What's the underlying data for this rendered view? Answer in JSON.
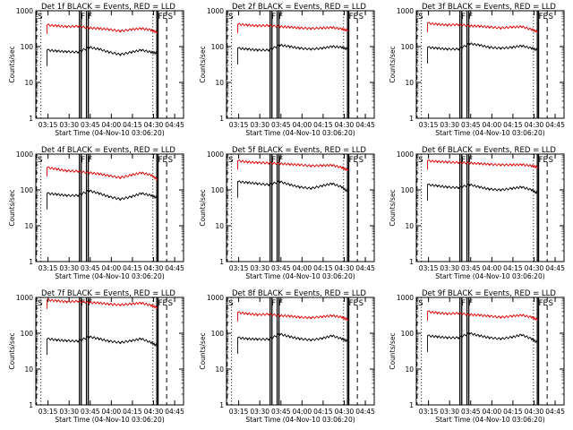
{
  "figure": {
    "axes": {
      "ylabel": "Counts/sec",
      "xlabel": "Start Time (04-Nov-10 03:06:20)",
      "ytick_labels": [
        "1",
        "10",
        "100",
        "1000"
      ],
      "xtick_labels": [
        "03:15",
        "03:30",
        "03:45",
        "04:00",
        "04:15",
        "04:30",
        "04:45"
      ]
    },
    "colors": {
      "events": "#000000",
      "lld": "#dd0000",
      "axis": "#000000"
    }
  },
  "chart_data": [
    {
      "type": "line",
      "title": "Det 1f BLACK = Events, RED = LLD",
      "x_unit": "minutes after 03:06:20",
      "xlim": [
        0,
        105
      ],
      "yscale": "log",
      "ylim": [
        1,
        1000
      ],
      "x": [
        0,
        8,
        15,
        22,
        30,
        38,
        45,
        52,
        60,
        68,
        75,
        82,
        86
      ],
      "series": [
        {
          "name": "LLD",
          "values": [
            null,
            400,
            380,
            360,
            370,
            330,
            320,
            300,
            270,
            300,
            320,
            290,
            250
          ]
        },
        {
          "name": "Events",
          "values": [
            null,
            80,
            75,
            72,
            70,
            95,
            85,
            70,
            60,
            70,
            80,
            70,
            65
          ]
        }
      ],
      "markers": [
        {
          "text": "S",
          "x": 0.5
        },
        {
          "text": "F",
          "x": 31
        },
        {
          "text": "F",
          "x": 36
        },
        {
          "text": "FE",
          "x": 86
        },
        {
          "text": "S",
          "x": 93
        }
      ]
    },
    {
      "type": "line",
      "title": "Det 2f BLACK = Events, RED = LLD",
      "x_unit": "minutes after 03:06:20",
      "xlim": [
        0,
        105
      ],
      "yscale": "log",
      "ylim": [
        1,
        1000
      ],
      "x": [
        0,
        8,
        15,
        22,
        30,
        38,
        45,
        52,
        60,
        68,
        75,
        82,
        86
      ],
      "series": [
        {
          "name": "LLD",
          "values": [
            null,
            420,
            400,
            380,
            390,
            360,
            350,
            330,
            320,
            330,
            340,
            310,
            280
          ]
        },
        {
          "name": "Events",
          "values": [
            null,
            90,
            85,
            80,
            80,
            110,
            100,
            90,
            85,
            90,
            100,
            95,
            85
          ]
        }
      ],
      "markers": [
        {
          "text": "S",
          "x": 0.5
        },
        {
          "text": "F",
          "x": 31
        },
        {
          "text": "F",
          "x": 36
        },
        {
          "text": "FE",
          "x": 86
        },
        {
          "text": "S",
          "x": 93
        }
      ]
    },
    {
      "type": "line",
      "title": "Det 3f BLACK = Events, RED = LLD",
      "x_unit": "minutes after 03:06:20",
      "xlim": [
        0,
        105
      ],
      "yscale": "log",
      "ylim": [
        1,
        1000
      ],
      "x": [
        0,
        8,
        15,
        22,
        30,
        38,
        45,
        52,
        60,
        68,
        75,
        82,
        86
      ],
      "series": [
        {
          "name": "LLD",
          "values": [
            null,
            450,
            420,
            400,
            410,
            380,
            370,
            350,
            330,
            350,
            360,
            300,
            260
          ]
        },
        {
          "name": "Events",
          "values": [
            null,
            95,
            90,
            85,
            85,
            120,
            110,
            95,
            90,
            95,
            105,
            90,
            80
          ]
        }
      ],
      "markers": [
        {
          "text": "S",
          "x": 0.5
        },
        {
          "text": "F",
          "x": 31
        },
        {
          "text": "F",
          "x": 36
        },
        {
          "text": "FE",
          "x": 86
        },
        {
          "text": "S",
          "x": 93
        }
      ]
    },
    {
      "type": "line",
      "title": "Det 4f BLACK = Events, RED = LLD",
      "x_unit": "minutes after 03:06:20",
      "xlim": [
        0,
        105
      ],
      "yscale": "log",
      "ylim": [
        1,
        1000
      ],
      "x": [
        0,
        8,
        15,
        22,
        30,
        38,
        45,
        52,
        60,
        68,
        75,
        82,
        86
      ],
      "series": [
        {
          "name": "LLD",
          "values": [
            null,
            420,
            380,
            340,
            330,
            300,
            280,
            250,
            220,
            260,
            300,
            260,
            200
          ]
        },
        {
          "name": "Events",
          "values": [
            null,
            80,
            75,
            70,
            70,
            95,
            80,
            65,
            55,
            65,
            80,
            70,
            60
          ]
        }
      ],
      "markers": [
        {
          "text": "S",
          "x": 0.5
        },
        {
          "text": "F",
          "x": 31
        },
        {
          "text": "F",
          "x": 36
        },
        {
          "text": "FE",
          "x": 86
        },
        {
          "text": "S",
          "x": 93
        }
      ]
    },
    {
      "type": "line",
      "title": "Det 5f BLACK = Events, RED = LLD",
      "x_unit": "minutes after 03:06:20",
      "xlim": [
        0,
        105
      ],
      "yscale": "log",
      "ylim": [
        1,
        1000
      ],
      "x": [
        0,
        8,
        15,
        22,
        30,
        38,
        45,
        52,
        60,
        68,
        75,
        82,
        86
      ],
      "series": [
        {
          "name": "LLD",
          "values": [
            null,
            650,
            600,
            580,
            560,
            540,
            520,
            500,
            470,
            480,
            490,
            420,
            360
          ]
        },
        {
          "name": "Events",
          "values": [
            null,
            170,
            160,
            150,
            140,
            170,
            140,
            120,
            110,
            130,
            150,
            120,
            90
          ]
        }
      ],
      "markers": [
        {
          "text": "S",
          "x": 0.5
        },
        {
          "text": "F",
          "x": 31
        },
        {
          "text": "F",
          "x": 36
        },
        {
          "text": "FE",
          "x": 86
        },
        {
          "text": "S",
          "x": 93
        }
      ]
    },
    {
      "type": "line",
      "title": "Det 6f BLACK = Events, RED = LLD",
      "x_unit": "minutes after 03:06:20",
      "xlim": [
        0,
        105
      ],
      "yscale": "log",
      "ylim": [
        1,
        1000
      ],
      "x": [
        0,
        8,
        15,
        22,
        30,
        38,
        45,
        52,
        60,
        68,
        75,
        82,
        86
      ],
      "series": [
        {
          "name": "LLD",
          "values": [
            null,
            650,
            620,
            600,
            580,
            560,
            540,
            520,
            500,
            500,
            510,
            470,
            430
          ]
        },
        {
          "name": "Events",
          "values": [
            null,
            140,
            130,
            120,
            115,
            140,
            120,
            105,
            100,
            110,
            120,
            100,
            80
          ]
        }
      ],
      "markers": [
        {
          "text": "S",
          "x": 0.5
        },
        {
          "text": "F",
          "x": 31
        },
        {
          "text": "F",
          "x": 36
        },
        {
          "text": "FE",
          "x": 86
        },
        {
          "text": "S",
          "x": 93
        }
      ]
    },
    {
      "type": "line",
      "title": "Det 7f BLACK = Events, RED = LLD",
      "x_unit": "minutes after 03:06:20",
      "xlim": [
        0,
        105
      ],
      "yscale": "log",
      "ylim": [
        1,
        1000
      ],
      "x": [
        0,
        8,
        15,
        22,
        30,
        38,
        45,
        52,
        60,
        68,
        75,
        82,
        86
      ],
      "series": [
        {
          "name": "LLD",
          "values": [
            null,
            850,
            800,
            760,
            780,
            720,
            700,
            650,
            620,
            660,
            700,
            600,
            520
          ]
        },
        {
          "name": "Events",
          "values": [
            null,
            70,
            65,
            62,
            60,
            80,
            70,
            60,
            55,
            62,
            70,
            55,
            45
          ]
        }
      ],
      "markers": [
        {
          "text": "S",
          "x": 0.5
        },
        {
          "text": "F",
          "x": 31
        },
        {
          "text": "F",
          "x": 36
        },
        {
          "text": "FE",
          "x": 86
        },
        {
          "text": "S",
          "x": 93
        }
      ]
    },
    {
      "type": "line",
      "title": "Det 8f BLACK = Events, RED = LLD",
      "x_unit": "minutes after 03:06:20",
      "xlim": [
        0,
        105
      ],
      "yscale": "log",
      "ylim": [
        1,
        1000
      ],
      "x": [
        0,
        8,
        15,
        22,
        30,
        38,
        45,
        52,
        60,
        68,
        75,
        82,
        86
      ],
      "series": [
        {
          "name": "LLD",
          "values": [
            null,
            380,
            350,
            330,
            340,
            310,
            300,
            280,
            270,
            290,
            310,
            280,
            240
          ]
        },
        {
          "name": "Events",
          "values": [
            null,
            75,
            70,
            68,
            68,
            95,
            80,
            70,
            65,
            72,
            85,
            70,
            60
          ]
        }
      ],
      "markers": [
        {
          "text": "S",
          "x": 0.5
        },
        {
          "text": "F",
          "x": 31
        },
        {
          "text": "F",
          "x": 36
        },
        {
          "text": "FE",
          "x": 86
        },
        {
          "text": "S",
          "x": 93
        }
      ]
    },
    {
      "type": "line",
      "title": "Det 9f BLACK = Events, RED = LLD",
      "x_unit": "minutes after 03:06:20",
      "xlim": [
        0,
        105
      ],
      "yscale": "log",
      "ylim": [
        1,
        1000
      ],
      "x": [
        0,
        8,
        15,
        22,
        30,
        38,
        45,
        52,
        60,
        68,
        75,
        82,
        86
      ],
      "series": [
        {
          "name": "LLD",
          "values": [
            null,
            400,
            370,
            350,
            360,
            330,
            320,
            300,
            280,
            300,
            320,
            280,
            240
          ]
        },
        {
          "name": "Events",
          "values": [
            null,
            85,
            80,
            75,
            75,
            100,
            85,
            75,
            70,
            78,
            90,
            70,
            55
          ]
        }
      ],
      "markers": [
        {
          "text": "S",
          "x": 0.5
        },
        {
          "text": "F",
          "x": 31
        },
        {
          "text": "F",
          "x": 36
        },
        {
          "text": "FE",
          "x": 86
        },
        {
          "text": "S",
          "x": 93
        }
      ]
    }
  ]
}
